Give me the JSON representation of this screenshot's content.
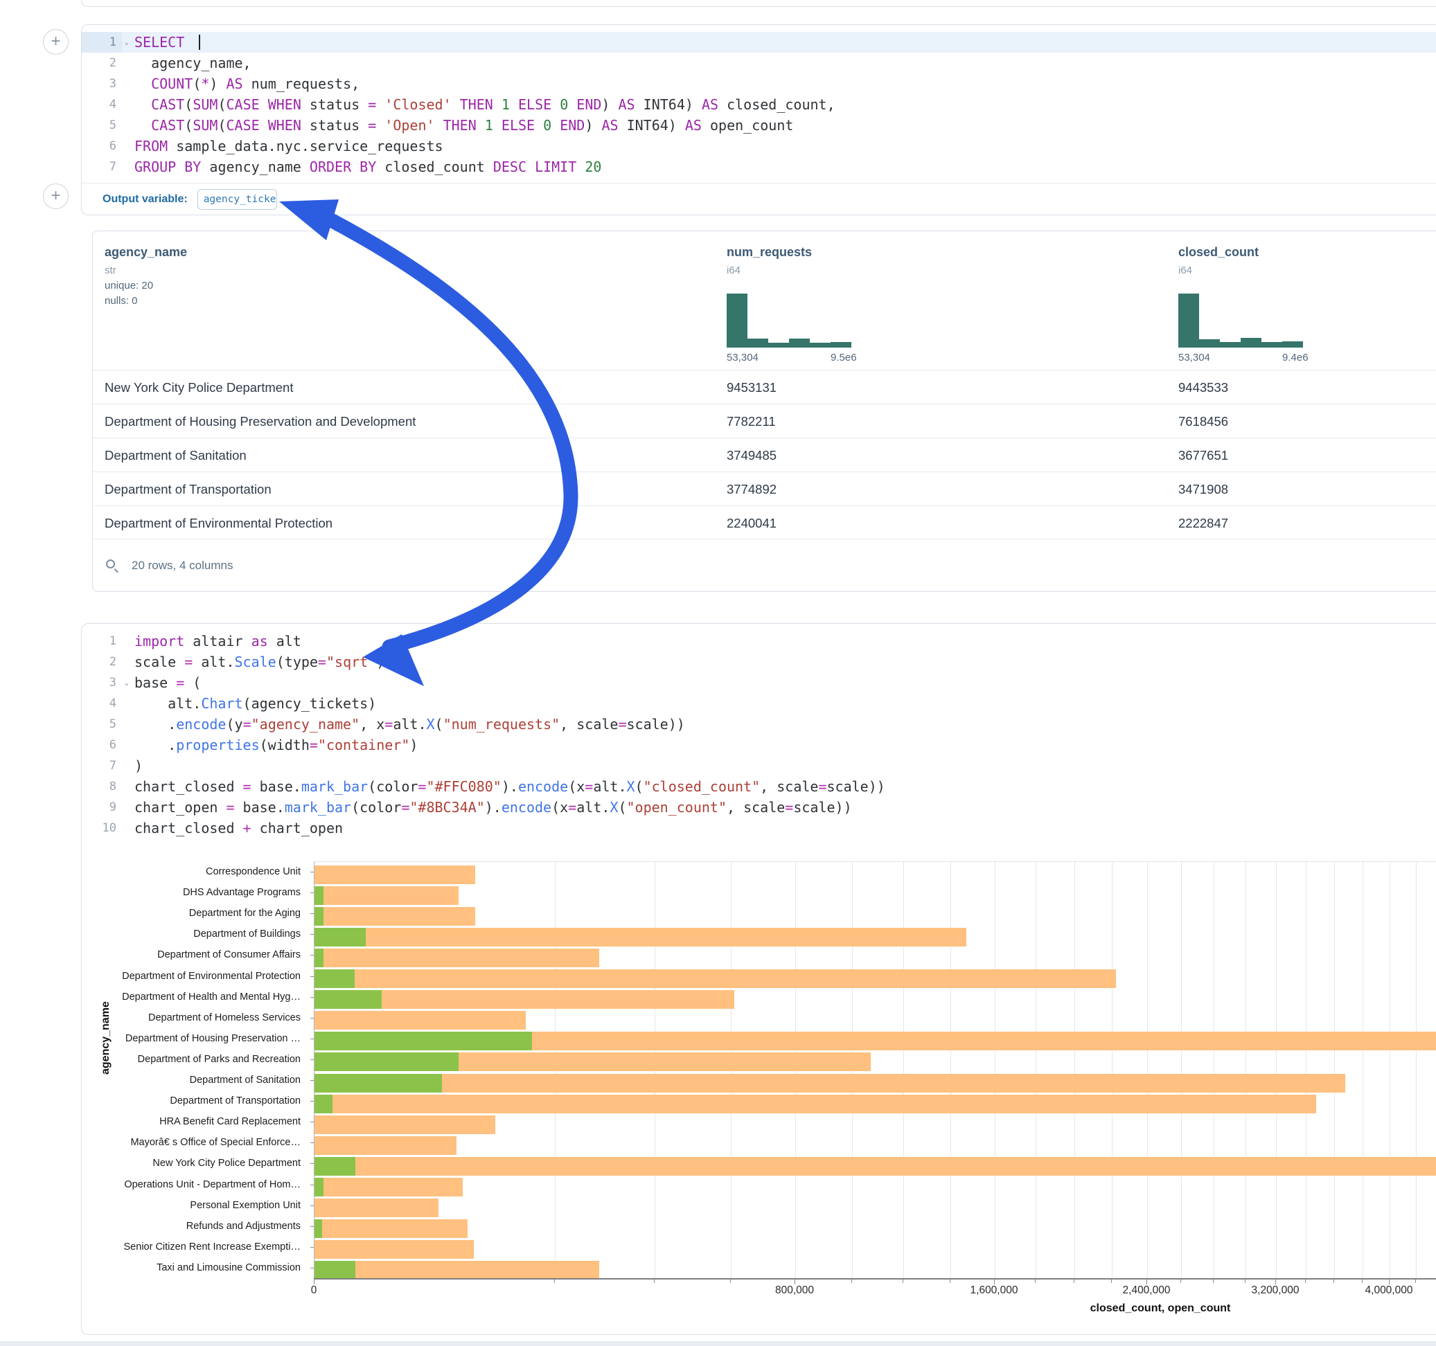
{
  "colors": {
    "keyword": "#9c27a8",
    "string": "#ad4036",
    "number": "#2e7d3c",
    "function": "#3f74e8",
    "hist_bar": "#35756a",
    "closed_bar": "#FFC080",
    "open_bar": "#8BC34A",
    "arrow_blue": "#2c5ce0",
    "outvar_blue": "#1f6ba5",
    "header_blue": "#3d5a74"
  },
  "sql_cell": {
    "lines": [
      {
        "num": "1",
        "chevron": true,
        "active": true,
        "cursor": true,
        "tokens": [
          [
            "k",
            "SELECT"
          ],
          [
            "t",
            " "
          ]
        ]
      },
      {
        "num": "2",
        "tokens": [
          [
            "t",
            "  agency_name,"
          ]
        ]
      },
      {
        "num": "3",
        "tokens": [
          [
            "t",
            "  "
          ],
          [
            "k",
            "COUNT"
          ],
          [
            "t",
            "("
          ],
          [
            "k",
            "*"
          ],
          [
            "t",
            ") "
          ],
          [
            "k",
            "AS"
          ],
          [
            "t",
            " num_requests,"
          ]
        ]
      },
      {
        "num": "4",
        "tokens": [
          [
            "t",
            "  "
          ],
          [
            "k",
            "CAST"
          ],
          [
            "t",
            "("
          ],
          [
            "k",
            "SUM"
          ],
          [
            "t",
            "("
          ],
          [
            "k",
            "CASE"
          ],
          [
            "t",
            " "
          ],
          [
            "k",
            "WHEN"
          ],
          [
            "t",
            " status "
          ],
          [
            "k",
            "="
          ],
          [
            "t",
            " "
          ],
          [
            "s",
            "'Closed'"
          ],
          [
            "t",
            " "
          ],
          [
            "k",
            "THEN"
          ],
          [
            "t",
            " "
          ],
          [
            "n",
            "1"
          ],
          [
            "t",
            " "
          ],
          [
            "k",
            "ELSE"
          ],
          [
            "t",
            " "
          ],
          [
            "n",
            "0"
          ],
          [
            "t",
            " "
          ],
          [
            "k",
            "END"
          ],
          [
            "t",
            ") "
          ],
          [
            "k",
            "AS"
          ],
          [
            "t",
            " INT64) "
          ],
          [
            "k",
            "AS"
          ],
          [
            "t",
            " closed_count,"
          ]
        ]
      },
      {
        "num": "5",
        "tokens": [
          [
            "t",
            "  "
          ],
          [
            "k",
            "CAST"
          ],
          [
            "t",
            "("
          ],
          [
            "k",
            "SUM"
          ],
          [
            "t",
            "("
          ],
          [
            "k",
            "CASE"
          ],
          [
            "t",
            " "
          ],
          [
            "k",
            "WHEN"
          ],
          [
            "t",
            " status "
          ],
          [
            "k",
            "="
          ],
          [
            "t",
            " "
          ],
          [
            "s",
            "'Open'"
          ],
          [
            "t",
            " "
          ],
          [
            "k",
            "THEN"
          ],
          [
            "t",
            " "
          ],
          [
            "n",
            "1"
          ],
          [
            "t",
            " "
          ],
          [
            "k",
            "ELSE"
          ],
          [
            "t",
            " "
          ],
          [
            "n",
            "0"
          ],
          [
            "t",
            " "
          ],
          [
            "k",
            "END"
          ],
          [
            "t",
            ") "
          ],
          [
            "k",
            "AS"
          ],
          [
            "t",
            " INT64) "
          ],
          [
            "k",
            "AS"
          ],
          [
            "t",
            " open_count"
          ]
        ]
      },
      {
        "num": "6",
        "tokens": [
          [
            "k",
            "FROM"
          ],
          [
            "t",
            " sample_data.nyc.service_requests"
          ]
        ]
      },
      {
        "num": "7",
        "tokens": [
          [
            "k",
            "GROUP"
          ],
          [
            "t",
            " "
          ],
          [
            "k",
            "BY"
          ],
          [
            "t",
            " agency_name "
          ],
          [
            "k",
            "ORDER"
          ],
          [
            "t",
            " "
          ],
          [
            "k",
            "BY"
          ],
          [
            "t",
            " closed_count "
          ],
          [
            "k",
            "DESC"
          ],
          [
            "t",
            " "
          ],
          [
            "k",
            "LIMIT"
          ],
          [
            "t",
            " "
          ],
          [
            "n",
            "20"
          ]
        ]
      }
    ],
    "output_variable_label": "Output variable:",
    "output_variable_value": "agency_tickets"
  },
  "table": {
    "columns": [
      {
        "name": "agency_name",
        "type": "str",
        "meta": [
          "unique: 20",
          "nulls: 0"
        ],
        "x": 17
      },
      {
        "name": "num_requests",
        "type": "i64",
        "x": 915,
        "hist": {
          "bins": [
            1,
            0.17,
            0.09,
            0.17,
            0.09,
            0.1
          ],
          "min_label": "53,304",
          "max_label": "9.5e6"
        }
      },
      {
        "name": "closed_count",
        "type": "i64",
        "x": 1567,
        "hist": {
          "bins": [
            1,
            0.15,
            0.1,
            0.18,
            0.1,
            0.11
          ],
          "min_label": "53,304",
          "max_label": "9.4e6"
        }
      }
    ],
    "rows": [
      {
        "agency": "New York City Police Department",
        "num": "9453131",
        "closed": "9443533"
      },
      {
        "agency": "Department of Housing Preservation and Development",
        "num": "7782211",
        "closed": "7618456"
      },
      {
        "agency": "Department of Sanitation",
        "num": "3749485",
        "closed": "3677651"
      },
      {
        "agency": "Department of Transportation",
        "num": "3774892",
        "closed": "3471908"
      },
      {
        "agency": "Department of Environmental Protection",
        "num": "2240041",
        "closed": "2222847"
      }
    ],
    "footer": "20 rows, 4 columns"
  },
  "python_cell": {
    "lines": [
      {
        "num": "1",
        "tokens": [
          [
            "k",
            "import"
          ],
          [
            "t",
            " altair "
          ],
          [
            "k",
            "as"
          ],
          [
            "t",
            " alt"
          ]
        ]
      },
      {
        "num": "2",
        "tokens": [
          [
            "t",
            "scale "
          ],
          [
            "o",
            "="
          ],
          [
            "t",
            " alt."
          ],
          [
            "f",
            "Scale"
          ],
          [
            "t",
            "(type"
          ],
          [
            "o",
            "="
          ],
          [
            "s",
            "\"sqrt\""
          ],
          [
            "t",
            ")"
          ]
        ]
      },
      {
        "num": "3",
        "chevron": true,
        "tokens": [
          [
            "t",
            "base "
          ],
          [
            "o",
            "="
          ],
          [
            "t",
            " ("
          ]
        ]
      },
      {
        "num": "4",
        "tokens": [
          [
            "t",
            "    alt."
          ],
          [
            "f",
            "Chart"
          ],
          [
            "t",
            "(agency_tickets)"
          ]
        ]
      },
      {
        "num": "5",
        "tokens": [
          [
            "t",
            "    ."
          ],
          [
            "f",
            "encode"
          ],
          [
            "t",
            "(y"
          ],
          [
            "o",
            "="
          ],
          [
            "s",
            "\"agency_name\""
          ],
          [
            "t",
            ", x"
          ],
          [
            "o",
            "="
          ],
          [
            "t",
            "alt."
          ],
          [
            "f",
            "X"
          ],
          [
            "t",
            "("
          ],
          [
            "s",
            "\"num_requests\""
          ],
          [
            "t",
            ", scale"
          ],
          [
            "o",
            "="
          ],
          [
            "t",
            "scale))"
          ]
        ]
      },
      {
        "num": "6",
        "tokens": [
          [
            "t",
            "    ."
          ],
          [
            "f",
            "properties"
          ],
          [
            "t",
            "(width"
          ],
          [
            "o",
            "="
          ],
          [
            "s",
            "\"container\""
          ],
          [
            "t",
            ")"
          ]
        ]
      },
      {
        "num": "7",
        "tokens": [
          [
            "t",
            ")"
          ]
        ]
      },
      {
        "num": "8",
        "tokens": [
          [
            "t",
            "chart_closed "
          ],
          [
            "o",
            "="
          ],
          [
            "t",
            " base."
          ],
          [
            "f",
            "mark_bar"
          ],
          [
            "t",
            "(color"
          ],
          [
            "o",
            "="
          ],
          [
            "s",
            "\"#FFC080\""
          ],
          [
            "t",
            ")."
          ],
          [
            "f",
            "encode"
          ],
          [
            "t",
            "(x"
          ],
          [
            "o",
            "="
          ],
          [
            "t",
            "alt."
          ],
          [
            "f",
            "X"
          ],
          [
            "t",
            "("
          ],
          [
            "s",
            "\"closed_count\""
          ],
          [
            "t",
            ", scale"
          ],
          [
            "o",
            "="
          ],
          [
            "t",
            "scale))"
          ]
        ]
      },
      {
        "num": "9",
        "tokens": [
          [
            "t",
            "chart_open "
          ],
          [
            "o",
            "="
          ],
          [
            "t",
            " base."
          ],
          [
            "f",
            "mark_bar"
          ],
          [
            "t",
            "(color"
          ],
          [
            "o",
            "="
          ],
          [
            "s",
            "\"#8BC34A\""
          ],
          [
            "t",
            ")."
          ],
          [
            "f",
            "encode"
          ],
          [
            "t",
            "(x"
          ],
          [
            "o",
            "="
          ],
          [
            "t",
            "alt."
          ],
          [
            "f",
            "X"
          ],
          [
            "t",
            "("
          ],
          [
            "s",
            "\"open_count\""
          ],
          [
            "t",
            ", scale"
          ],
          [
            "o",
            "="
          ],
          [
            "t",
            "scale))"
          ]
        ]
      },
      {
        "num": "10",
        "tokens": [
          [
            "t",
            "chart_closed "
          ],
          [
            "o",
            "+"
          ],
          [
            "t",
            " chart_open"
          ]
        ]
      }
    ]
  },
  "chart_data": {
    "type": "bar",
    "orientation": "horizontal",
    "x_scale": "sqrt",
    "xlabel": "closed_count, open_count",
    "ylabel": "agency_name",
    "x_ticks": [
      0,
      800000,
      1600000,
      2400000,
      3200000,
      4000000
    ],
    "x_tick_labels": [
      "0",
      "800,000",
      "1,600,000",
      "2,400,000",
      "3,200,000",
      "4,000,000"
    ],
    "minor_grid_step": 200000,
    "grid": true,
    "legend": "none",
    "categories": [
      "Correspondence Unit",
      "DHS Advantage Programs",
      "Department for the Aging",
      "Department of Buildings",
      "Department of Consumer Affairs",
      "Department of Environmental Protection",
      "Department of Health and Mental Hyg…",
      "Department of Homeless Services",
      "Department of Housing Preservation …",
      "Department of Parks and Recreation",
      "Department of Sanitation",
      "Department of Transportation",
      "HRA Benefit Card Replacement",
      "Mayorâ€ s Office of Special Enforce…",
      "New York City Police Department",
      "Operations Unit - Department of Hom…",
      "Personal Exemption Unit",
      "Refunds and Adjustments",
      "Senior Citizen Rent Increase Exempti…",
      "Taxi and Limousine Commission"
    ],
    "series": [
      {
        "name": "closed_count",
        "color": "#FFC080",
        "values": [
          89000,
          72000,
          89000,
          1470000,
          280000,
          2222847,
          610000,
          154000,
          7618456,
          1070000,
          3677651,
          3471908,
          113000,
          70000,
          9443533,
          76000,
          53300,
          81000,
          87600,
          280000
        ]
      },
      {
        "name": "open_count",
        "color": "#8BC34A",
        "values": [
          0,
          300,
          300,
          9200,
          300,
          5500,
          15500,
          0,
          164000,
          72000,
          56000,
          1100,
          0,
          0,
          5700,
          300,
          0,
          200,
          0,
          5700
        ]
      }
    ]
  }
}
